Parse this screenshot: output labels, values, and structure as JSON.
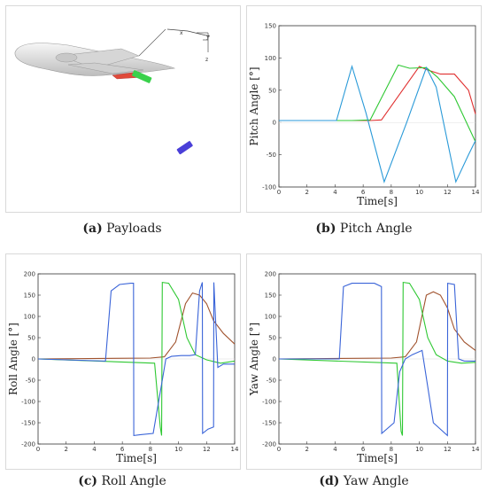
{
  "captions": [
    {
      "tag": "(a)",
      "text": "Payloads"
    },
    {
      "tag": "(b)",
      "text": "Pitch Angle"
    },
    {
      "tag": "(c)",
      "text": "Roll Angle"
    },
    {
      "tag": "(d)",
      "text": "Yaw Angle"
    }
  ],
  "payload_view": {
    "axis_labels": [
      "x",
      "y",
      "z"
    ],
    "colors": {
      "aircraft": "#e6e6e6",
      "green_payload": "#39d14b",
      "blue_payload": "#4a3fd8",
      "red_payload": "#e04a3a"
    }
  },
  "chart_data": [
    {
      "type": "line",
      "xlabel": "Time[s]",
      "ylabel": "Pitch Angle [°]",
      "xlim": [
        0,
        14
      ],
      "ylim": [
        -100,
        150
      ],
      "xticks": [
        0,
        2,
        4,
        6,
        8,
        10,
        12,
        14
      ],
      "yticks": [
        -100,
        -50,
        0,
        50,
        100,
        150
      ],
      "series": [
        {
          "color": "#e03030",
          "x": [
            0,
            3.3,
            6.5,
            7.3,
            10,
            10.5,
            11.5,
            12.5,
            13.5,
            14
          ],
          "y": [
            3,
            3,
            3,
            4,
            87,
            82,
            75,
            75,
            50,
            13
          ]
        },
        {
          "color": "#2ec832",
          "x": [
            0,
            3.3,
            5.2,
            6.5,
            8.5,
            9.3,
            10.5,
            11.3,
            12.5,
            14
          ],
          "y": [
            3,
            3,
            3,
            4,
            89,
            84,
            85,
            70,
            40,
            -30
          ]
        },
        {
          "color": "#2a9ad8",
          "x": [
            0,
            3.5,
            4.1,
            5.2,
            6.2,
            7.5,
            9.1,
            10.5,
            11.2,
            12.6,
            13.5,
            14
          ],
          "y": [
            3,
            3,
            3,
            87,
            15,
            -92,
            0,
            85,
            55,
            -92,
            -50,
            -28
          ]
        }
      ]
    },
    {
      "type": "line",
      "xlabel": "Time[s]",
      "ylabel": "Roll Angle [°]",
      "xlim": [
        0,
        14
      ],
      "ylim": [
        -200,
        200
      ],
      "xticks": [
        0,
        2,
        4,
        6,
        8,
        10,
        12,
        14
      ],
      "yticks": [
        -200,
        -150,
        -100,
        -50,
        0,
        50,
        100,
        150,
        200
      ],
      "series": [
        {
          "color": "#a0522d",
          "x": [
            0,
            8,
            9,
            9.8,
            10.5,
            11,
            11.5,
            12,
            12.5,
            13.2,
            14
          ],
          "y": [
            0,
            2,
            5,
            40,
            130,
            155,
            150,
            130,
            90,
            60,
            35
          ]
        },
        {
          "color": "#2ec832",
          "x": [
            0,
            8.3,
            8.7,
            8.8,
            8.85,
            9.3,
            10,
            10.6,
            11.2,
            12,
            13,
            14
          ],
          "y": [
            0,
            -10,
            -160,
            -180,
            180,
            178,
            140,
            50,
            10,
            -2,
            -10,
            -5
          ]
        },
        {
          "color": "#3a64d8",
          "x": [
            0,
            4.8,
            5.2,
            5.8,
            6.6,
            6.8,
            6.82,
            7.3,
            8.2,
            8.9,
            9.1,
            9.5,
            10.2,
            10.8,
            11.2,
            11.5,
            11.7,
            11.72,
            12.1,
            12.5,
            12.52,
            12.8,
            13.2,
            14
          ],
          "y": [
            0,
            -5,
            160,
            175,
            178,
            178,
            -180,
            -178,
            -175,
            -40,
            0,
            6,
            8,
            8,
            10,
            160,
            180,
            -175,
            -165,
            -160,
            180,
            -20,
            -12,
            -12
          ]
        }
      ]
    },
    {
      "type": "line",
      "xlabel": "Time[s]",
      "ylabel": "Yaw Angle [°]",
      "xlim": [
        0,
        14
      ],
      "ylim": [
        -200,
        200
      ],
      "xticks": [
        0,
        2,
        4,
        6,
        8,
        10,
        12,
        14
      ],
      "yticks": [
        -200,
        -150,
        -100,
        -50,
        0,
        50,
        100,
        150,
        200
      ],
      "series": [
        {
          "color": "#a0522d",
          "x": [
            0,
            8,
            9,
            9.8,
            10.5,
            11,
            11.5,
            12,
            12.5,
            13.2,
            14
          ],
          "y": [
            0,
            2,
            5,
            40,
            150,
            158,
            150,
            120,
            70,
            40,
            20
          ]
        },
        {
          "color": "#2ec832",
          "x": [
            0,
            8.4,
            8.7,
            8.8,
            8.85,
            9.3,
            10,
            10.6,
            11.2,
            12,
            13,
            14
          ],
          "y": [
            0,
            -10,
            -170,
            -180,
            180,
            178,
            140,
            50,
            10,
            -5,
            -10,
            -8
          ]
        },
        {
          "color": "#3a64d8",
          "x": [
            0,
            4.3,
            4.6,
            5.2,
            6.8,
            7.3,
            7.32,
            8.2,
            8.6,
            9.0,
            9.5,
            10.2,
            11,
            12.0,
            12.02,
            12.5,
            12.8,
            13.2,
            14
          ],
          "y": [
            0,
            0,
            170,
            178,
            178,
            170,
            -175,
            -150,
            -30,
            0,
            10,
            20,
            -150,
            -180,
            178,
            175,
            0,
            -5,
            -5
          ]
        }
      ]
    }
  ]
}
